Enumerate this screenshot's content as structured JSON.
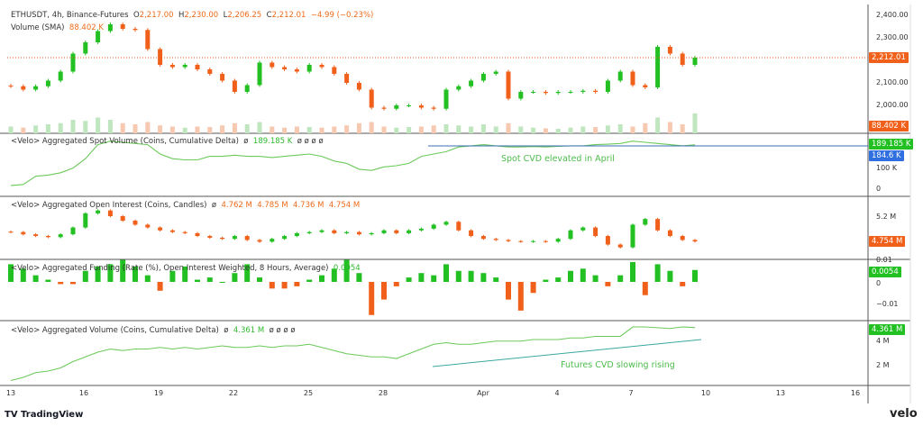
{
  "header": {
    "symbol": "ETHUSDT, 4h, Binance-Futures",
    "o_label": "O",
    "open": "2,217.00",
    "h_label": "H",
    "high": "2,230.00",
    "l_label": "L",
    "low": "2,206.25",
    "c_label": "C",
    "close": "2,212.01",
    "change": "−4.99 (−0.23%)",
    "volume_label": "Volume (SMA)",
    "volume_value": "88.402 K"
  },
  "panes": {
    "spot": {
      "title": "<Velo> Aggregated Spot Volume (Coins, Cumulative Delta)",
      "nulls_before": "ø",
      "value": "189.185 K",
      "nulls_after": "ø  ø  ø  ø",
      "tag": "189.185 K",
      "tag2": "184.6 K",
      "ticks": [
        "100 K",
        "0"
      ],
      "annotation": "Spot CVD elevated in April"
    },
    "oi": {
      "title": "<Velo> Aggregated Open Interest (Coins, Candles)",
      "nulls_before": "ø",
      "o": "4.762 M",
      "h": "4.785 M",
      "l": "4.736 M",
      "c": "4.754 M",
      "tag": "4.754 M",
      "ticks": [
        "5.2 M"
      ]
    },
    "funding": {
      "title": "<Velo> Aggregated Funding (Rate (%), Open Interest Weighted, 8 Hours, Average)",
      "value": "0.0054",
      "tag": "0.0054",
      "ticks": [
        "0.01",
        "0",
        "−0.01"
      ]
    },
    "vol": {
      "title": "<Velo> Aggregated Volume (Coins, Cumulative Delta)",
      "nulls_before": "ø",
      "value": "4.361 M",
      "nulls_after": "ø  ø  ø  ø",
      "tag": "4.361 M",
      "ticks": [
        "4 M",
        "2 M"
      ],
      "annotation": "Futures CVD slowing rising"
    }
  },
  "price_axis": {
    "ticks": [
      "2,400.00",
      "2,300.00",
      "2,100.00",
      "2,000.00"
    ],
    "last_tag": "2,212.01",
    "volume_tag": "88.402 K"
  },
  "time_axis": [
    "13",
    "16",
    "19",
    "22",
    "25",
    "28",
    "Apr",
    "4",
    "7",
    "10",
    "13",
    "16"
  ],
  "footer": {
    "brand": "TradingView",
    "watermark": "velo"
  },
  "colors": {
    "up": "#22c022",
    "down": "#f0601a",
    "line": "#6cc95a",
    "hline": "#3b6fb5",
    "trend": "#3aa8a0",
    "blue_tag": "#2f6fe0"
  },
  "chart_data": [
    {
      "type": "candlestick",
      "title": "ETHUSDT, 4h, Binance-Futures",
      "ylim": [
        1950,
        2420
      ],
      "closes": [
        2085,
        2070,
        2085,
        2110,
        2150,
        2230,
        2280,
        2330,
        2360,
        2340,
        2335,
        2250,
        2180,
        2170,
        2180,
        2160,
        2140,
        2110,
        2060,
        2090,
        2190,
        2170,
        2160,
        2150,
        2180,
        2170,
        2140,
        2100,
        2070,
        1990,
        1985,
        2000,
        2000,
        1990,
        1985,
        2070,
        2085,
        2110,
        2140,
        2150,
        2030,
        2060,
        2060,
        2055,
        2060,
        2060,
        2065,
        2060,
        2110,
        2150,
        2090,
        2080,
        2260,
        2230,
        2180,
        2212.01
      ],
      "volume_k": [
        30,
        25,
        35,
        40,
        45,
        60,
        55,
        70,
        60,
        45,
        40,
        50,
        35,
        30,
        25,
        30,
        28,
        35,
        45,
        40,
        50,
        30,
        25,
        30,
        28,
        25,
        30,
        35,
        45,
        50,
        30,
        25,
        28,
        30,
        35,
        40,
        35,
        30,
        40,
        30,
        45,
        30,
        25,
        22,
        20,
        25,
        30,
        28,
        35,
        40,
        30,
        45,
        70,
        50,
        40,
        88.402
      ]
    },
    {
      "type": "line",
      "title": "<Velo> Aggregated Spot Volume (Coins, Cumulative Delta)",
      "unit": "K",
      "values": [
        15,
        20,
        55,
        60,
        70,
        90,
        130,
        190,
        205,
        200,
        195,
        190,
        150,
        130,
        125,
        125,
        140,
        140,
        145,
        140,
        140,
        135,
        140,
        145,
        150,
        140,
        120,
        110,
        85,
        80,
        95,
        100,
        110,
        140,
        150,
        160,
        180,
        185,
        190,
        185,
        180,
        180,
        182,
        180,
        183,
        185,
        185,
        190,
        192,
        195,
        205,
        200,
        195,
        190,
        185,
        189.185
      ],
      "hline": 184.6
    },
    {
      "type": "candlestick",
      "title": "<Velo> Aggregated Open Interest (Coins, Candles)",
      "unit": "M",
      "closes": [
        4.92,
        4.88,
        4.85,
        4.83,
        4.88,
        5.0,
        5.25,
        5.3,
        5.2,
        5.12,
        5.05,
        5.0,
        4.95,
        4.92,
        4.9,
        4.85,
        4.82,
        4.8,
        4.85,
        4.78,
        4.75,
        4.8,
        4.85,
        4.9,
        4.92,
        4.95,
        4.9,
        4.92,
        4.88,
        4.9,
        4.95,
        4.9,
        4.95,
        4.98,
        5.05,
        5.1,
        4.95,
        4.85,
        4.8,
        4.78,
        4.76,
        4.75,
        4.76,
        4.75,
        4.8,
        4.95,
        5.0,
        4.85,
        4.7,
        4.65,
        5.05,
        5.15,
        4.95,
        4.85,
        4.78,
        4.754
      ]
    },
    {
      "type": "bar",
      "title": "<Velo> Aggregated Funding (Rate (%), Open Interest Weighted, 8 Hours, Average)",
      "values": [
        0.008,
        0.006,
        0.003,
        0.001,
        -0.001,
        -0.001,
        0.005,
        0.007,
        0.008,
        0.01,
        0.007,
        0.003,
        -0.004,
        0.005,
        0.007,
        0.001,
        0.002,
        0,
        0.004,
        0.008,
        0.002,
        -0.003,
        -0.003,
        -0.002,
        0.001,
        0.003,
        0.006,
        0.01,
        0.004,
        -0.015,
        -0.008,
        -0.002,
        0.002,
        0.004,
        0.003,
        0.008,
        0.005,
        0.005,
        0.004,
        0.002,
        -0.008,
        -0.013,
        -0.005,
        0.001,
        0.002,
        0.005,
        0.006,
        0.003,
        -0.002,
        0.003,
        0.009,
        -0.006,
        0.008,
        0.005,
        -0.002,
        0.0054
      ]
    },
    {
      "type": "line",
      "title": "<Velo> Aggregated Volume (Coins, Cumulative Delta)",
      "unit": "M",
      "values": [
        1.0,
        1.2,
        1.5,
        1.6,
        1.8,
        2.2,
        2.5,
        2.8,
        3.0,
        2.9,
        3.0,
        3.0,
        3.1,
        3.0,
        3.1,
        3.0,
        3.1,
        3.2,
        3.1,
        3.1,
        3.2,
        3.1,
        3.2,
        3.2,
        3.3,
        3.1,
        2.9,
        2.7,
        2.6,
        2.5,
        2.5,
        2.4,
        2.7,
        3.0,
        3.3,
        3.4,
        3.3,
        3.3,
        3.4,
        3.5,
        3.5,
        3.5,
        3.6,
        3.6,
        3.6,
        3.7,
        3.7,
        3.8,
        3.8,
        3.8,
        4.4,
        4.4,
        4.35,
        4.3,
        4.4,
        4.361
      ]
    }
  ]
}
